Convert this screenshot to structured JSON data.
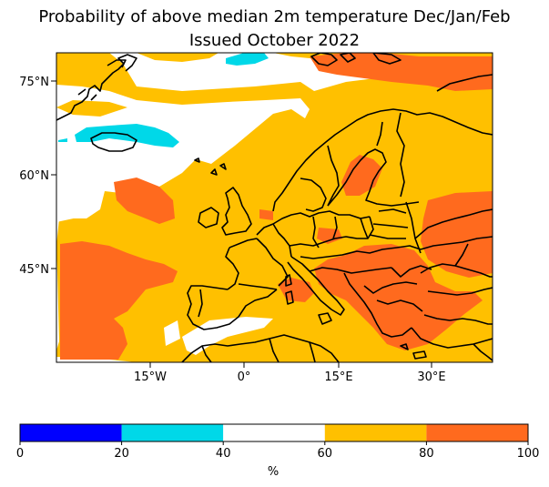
{
  "title": {
    "line1": "Probability of above median 2m temperature Dec/Jan/Feb",
    "line2": "Issued October 2022"
  },
  "map": {
    "lat_ticks": [
      "75°N",
      "60°N",
      "45°N"
    ],
    "lon_ticks": [
      "15°W",
      "0°",
      "15°E",
      "30°E"
    ]
  },
  "legend": {
    "categories": [
      {
        "range": "0-20",
        "color": "#0000ff"
      },
      {
        "range": "20-40",
        "color": "#00d8e8"
      },
      {
        "range": "40-60",
        "color": "#ffffff"
      },
      {
        "range": "60-80",
        "color": "#ffc000"
      },
      {
        "range": "80-100",
        "color": "#ff6a1e"
      }
    ],
    "tick_labels": [
      "0",
      "20",
      "40",
      "60",
      "80",
      "100"
    ],
    "unit": "%"
  }
}
